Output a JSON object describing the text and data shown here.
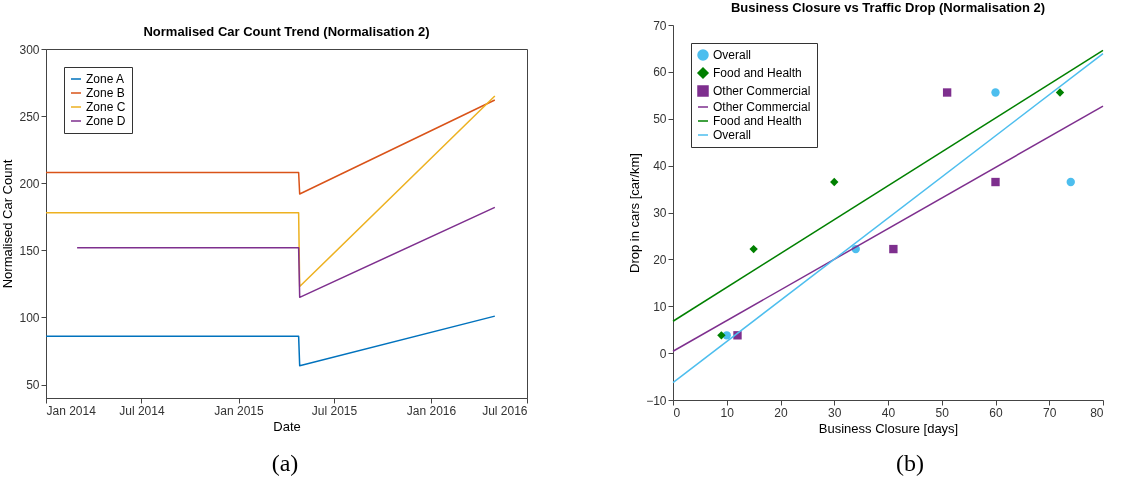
{
  "chart_data": [
    {
      "type": "line",
      "title": "Normalised Car Count Trend (Normalisation 2)",
      "xlabel": "Date",
      "ylabel": "Normalised Car Count",
      "annotations": [
        "(a)"
      ],
      "xlim": [
        "2014-01-01",
        "2016-07-01"
      ],
      "xticks": [
        {
          "value": "2014-01-01",
          "label": "Jan 2014"
        },
        {
          "value": "2014-07-01",
          "label": "Jul 2014"
        },
        {
          "value": "2015-01-01",
          "label": "Jan 2015"
        },
        {
          "value": "2015-07-01",
          "label": "Jul 2015"
        },
        {
          "value": "2016-01-01",
          "label": "Jan 2016"
        },
        {
          "value": "2016-07-01",
          "label": "Jul 2016"
        }
      ],
      "ylim": [
        40,
        300
      ],
      "yticks": [
        50,
        100,
        150,
        200,
        250,
        300
      ],
      "legend": "top left",
      "series": [
        {
          "name": "Zone A",
          "color": "#0072bd",
          "x": [
            "2014-01-01",
            "2015-04-25",
            "2015-04-27",
            "2016-05-01"
          ],
          "values": [
            86,
            86,
            64,
            101
          ]
        },
        {
          "name": "Zone B",
          "color": "#d95319",
          "x": [
            "2014-01-01",
            "2015-04-25",
            "2015-04-27",
            "2016-05-01"
          ],
          "values": [
            208,
            208,
            192,
            262
          ]
        },
        {
          "name": "Zone C",
          "color": "#edb120",
          "x": [
            "2014-01-01",
            "2015-04-25",
            "2015-04-27",
            "2016-05-01"
          ],
          "values": [
            178,
            178,
            123,
            265
          ]
        },
        {
          "name": "Zone D",
          "color": "#7e2f8e",
          "x": [
            "2014-03-01",
            "2015-04-25",
            "2015-04-27",
            "2016-05-01"
          ],
          "values": [
            152,
            152,
            115,
            182
          ]
        }
      ]
    },
    {
      "type": "scatter",
      "title": "Business Closure vs Traffic Drop (Normalisation 2)",
      "xlabel": "Business Closure [days]",
      "ylabel": "Drop in cars [car/km]",
      "annotations": [
        "(b)"
      ],
      "xlim": [
        0,
        80
      ],
      "xticks": [
        0,
        10,
        20,
        30,
        40,
        50,
        60,
        70,
        80
      ],
      "ylim": [
        -10,
        70
      ],
      "yticks": [
        -10,
        0,
        10,
        20,
        30,
        40,
        50,
        60,
        70
      ],
      "legend": "top left",
      "series": [
        {
          "name": "Overall",
          "type": "scatter",
          "marker": "circle",
          "color": "#4dbeee",
          "x": [
            10,
            34,
            60,
            74
          ],
          "values": [
            3.8,
            22.2,
            55.6,
            36.5
          ]
        },
        {
          "name": "Food and Health",
          "type": "scatter",
          "marker": "diamond",
          "color": "#008000",
          "x": [
            9,
            15,
            30,
            72
          ],
          "values": [
            3.8,
            22.2,
            36.5,
            55.6
          ]
        },
        {
          "name": "Other Commercial",
          "type": "scatter",
          "marker": "square",
          "color": "#7e2f8e",
          "x": [
            12,
            41,
            51,
            60
          ],
          "values": [
            3.8,
            22.2,
            55.6,
            36.5
          ]
        },
        {
          "name": "Other Commercial",
          "type": "line",
          "marker": "none",
          "color": "#7e2f8e",
          "x": [
            0,
            80
          ],
          "values": [
            0.4,
            52.7
          ]
        },
        {
          "name": "Food and Health",
          "type": "line",
          "marker": "none",
          "color": "#008000",
          "x": [
            0,
            80
          ],
          "values": [
            6.8,
            64.6
          ]
        },
        {
          "name": "Overall",
          "type": "line",
          "marker": "none",
          "color": "#4dbeee",
          "x": [
            0,
            80
          ],
          "values": [
            -6.3,
            63.9
          ]
        }
      ]
    }
  ]
}
